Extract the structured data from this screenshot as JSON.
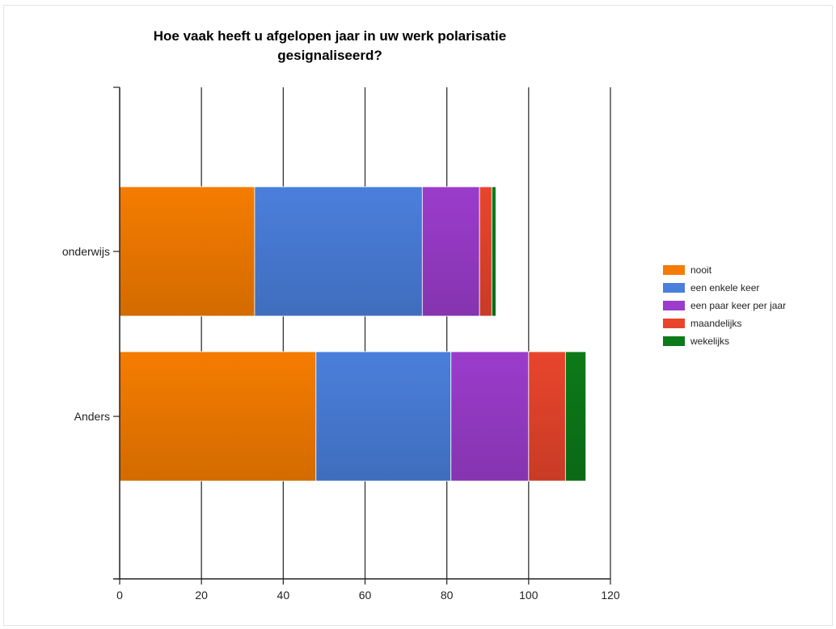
{
  "chart_data": {
    "type": "bar",
    "orientation": "horizontal",
    "stacked": true,
    "title": "Hoe vaak heeft u afgelopen jaar in uw werk polarisatie gesignaliseerd?",
    "title_lines": [
      "Hoe vaak heeft u afgelopen jaar in uw werk polarisatie",
      "gesignaliseerd?"
    ],
    "categories": [
      "onderwijs",
      "Anders"
    ],
    "series": [
      {
        "name": "nooit",
        "color": "#f57c00",
        "values": [
          33,
          48
        ]
      },
      {
        "name": "een enkele keer",
        "color": "#4a7fdc",
        "values": [
          41,
          33
        ]
      },
      {
        "name": "een paar keer per jaar",
        "color": "#9b3ccc",
        "values": [
          14,
          19
        ]
      },
      {
        "name": "maandelijks",
        "color": "#e8452c",
        "values": [
          3,
          9
        ]
      },
      {
        "name": "wekelijks",
        "color": "#0c7a18",
        "values": [
          1,
          5
        ]
      }
    ],
    "xlim": [
      0,
      120
    ],
    "xticks": [
      0,
      20,
      40,
      60,
      80,
      100,
      120
    ],
    "xtick_labels": [
      "0",
      "20",
      "40",
      "60",
      "80",
      "100",
      "120"
    ],
    "xlabel": "",
    "ylabel": "",
    "grid": true,
    "legend": "right"
  }
}
